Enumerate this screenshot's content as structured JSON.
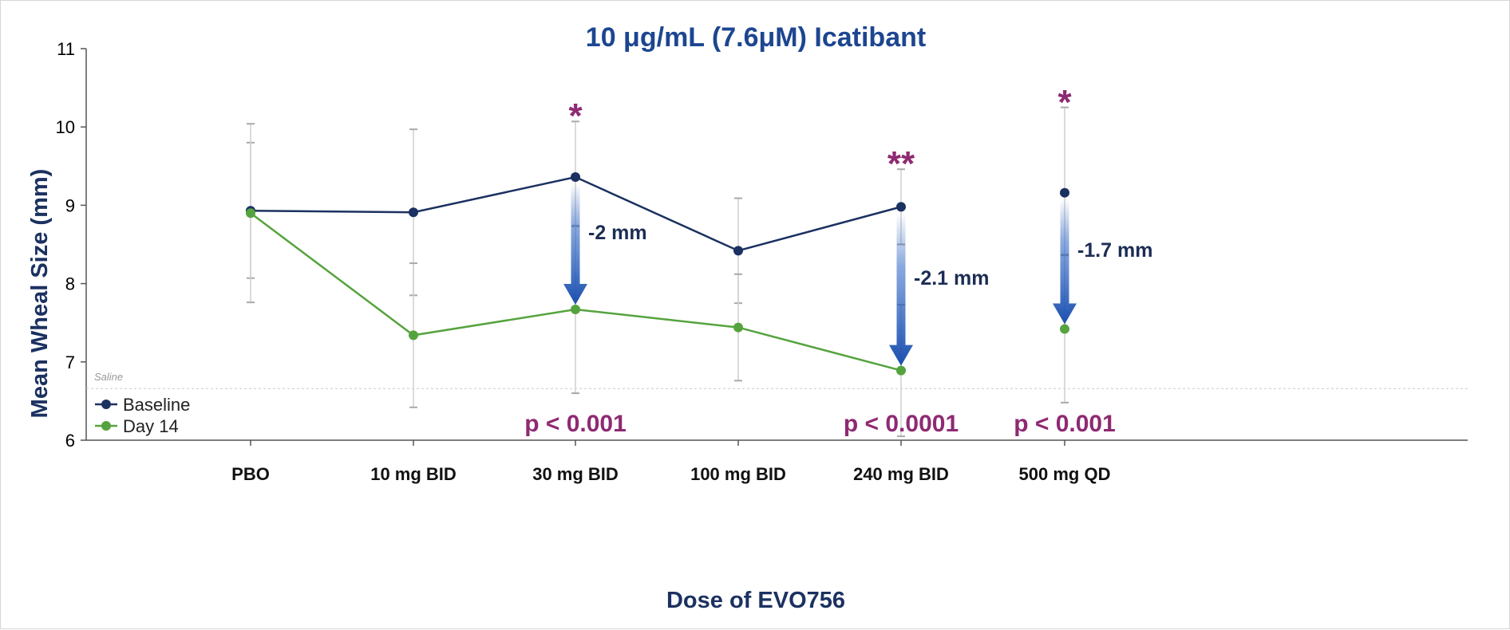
{
  "chart_data": {
    "type": "line",
    "title": "10 μg/mL (7.6μM) Icatibant",
    "xlabel": "Dose of EVO756",
    "ylabel": "Mean Wheal Size (mm)",
    "ylim": [
      6,
      11
    ],
    "yticks": [
      "6",
      "7",
      "8",
      "9",
      "10",
      "11"
    ],
    "categories": [
      "PBO",
      "10 mg BID",
      "30 mg BID",
      "100 mg BID",
      "240 mg BID",
      "500 mg QD"
    ],
    "series": [
      {
        "name": "Baseline",
        "color": "#1b3161",
        "connected_through": 4,
        "values": [
          8.93,
          8.91,
          9.36,
          8.42,
          8.98,
          9.16
        ],
        "error_low": [
          8.07,
          7.85,
          8.73,
          7.75,
          8.5,
          8.37
        ],
        "error_high": [
          9.8,
          9.97,
          10.07,
          9.09,
          9.46,
          10.25
        ]
      },
      {
        "name": "Day 14",
        "color": "#55a33e",
        "connected_through": 4,
        "values": [
          8.9,
          7.34,
          7.67,
          7.44,
          6.89,
          7.42
        ],
        "error_low": [
          7.76,
          6.42,
          6.6,
          6.76,
          6.05,
          6.48
        ],
        "error_high": [
          10.04,
          8.26,
          8.74,
          8.12,
          7.73,
          8.36
        ]
      }
    ],
    "reference_line": {
      "label": "Saline",
      "y": 6.66
    },
    "annotations": [
      {
        "category": "30 mg BID",
        "star": "*",
        "p_value": "p < 0.001",
        "change": "-2 mm"
      },
      {
        "category": "240 mg BID",
        "star": "**",
        "p_value": "p < 0.0001",
        "change": "-2.1 mm"
      },
      {
        "category": "500 mg QD",
        "star": "*",
        "p_value": "p < 0.001",
        "change": "-1.7 mm"
      }
    ],
    "legend_position": "bottom-left",
    "grid": false
  }
}
